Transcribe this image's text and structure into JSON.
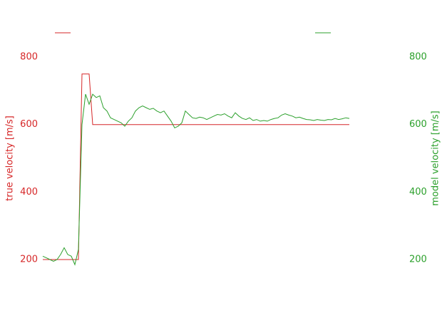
{
  "chart_data": {
    "type": "line",
    "y_label": "true velocity [m/s]",
    "y2_label": "model velocity [m/s]",
    "ylim": [
      200,
      800
    ],
    "yticks": [
      200,
      400,
      600,
      800
    ],
    "y2lim": [
      200,
      800
    ],
    "y2ticks": [
      200,
      400,
      600,
      800
    ],
    "series": [
      {
        "color": "#d62728",
        "values": [
          200,
          200,
          200,
          200,
          200,
          200,
          200,
          200,
          200,
          200,
          200,
          750,
          750,
          750,
          600,
          600,
          600,
          600,
          600,
          600,
          600,
          600,
          600,
          600,
          600,
          600,
          600,
          600,
          600,
          600,
          600,
          600,
          600,
          600,
          600,
          600,
          600,
          600,
          600,
          600,
          600,
          600,
          600,
          600,
          600,
          600,
          600,
          600,
          600,
          600,
          600,
          600,
          600,
          600,
          600,
          600,
          600,
          600,
          600,
          600,
          600,
          600,
          600,
          600,
          600,
          600,
          600,
          600,
          600,
          600,
          600,
          600,
          600,
          600,
          600,
          600,
          600,
          600,
          600,
          600,
          600,
          600,
          600,
          600,
          600,
          600,
          600
        ]
      },
      {
        "color": "#2ca02c",
        "axis": "y2",
        "values": [
          210,
          205,
          200,
          195,
          200,
          215,
          235,
          215,
          210,
          185,
          230,
          600,
          690,
          660,
          690,
          680,
          685,
          650,
          640,
          620,
          615,
          610,
          605,
          595,
          610,
          620,
          640,
          650,
          655,
          650,
          645,
          648,
          640,
          635,
          640,
          625,
          610,
          590,
          595,
          605,
          640,
          630,
          620,
          618,
          622,
          620,
          615,
          620,
          625,
          630,
          628,
          632,
          625,
          620,
          635,
          625,
          618,
          615,
          620,
          612,
          615,
          610,
          612,
          610,
          615,
          618,
          620,
          628,
          632,
          628,
          625,
          620,
          622,
          618,
          615,
          614,
          612,
          615,
          613,
          612,
          615,
          614,
          618,
          615,
          617,
          620,
          618
        ]
      }
    ]
  }
}
